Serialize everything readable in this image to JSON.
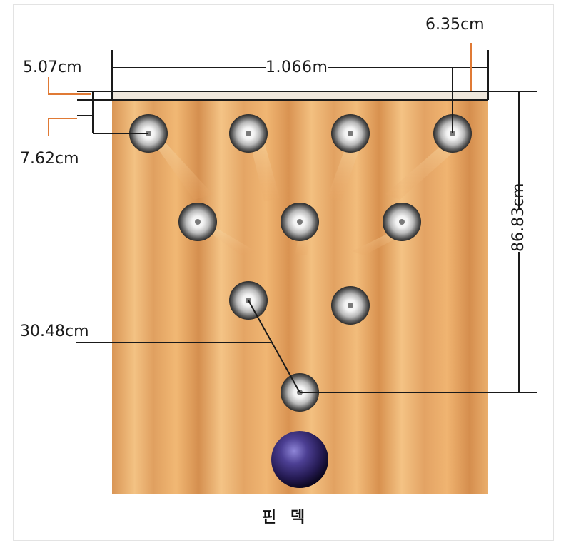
{
  "labels": {
    "pin_spacing_top": "5.07cm",
    "deck_width": "1.066m",
    "pin_diameter": "6.35cm",
    "pin_offset": "7.62cm",
    "deck_length": "86.83cm",
    "pin_distance": "30.48cm"
  },
  "caption": "핀 덱",
  "colors": {
    "wood_light": "#f0b46e",
    "wood_dark": "#c9844a",
    "pin_spot": "#9a9a9a",
    "ball": "#3a2f6e",
    "dimension_line": "#1a1a1a",
    "accent_line": "#e07a35"
  }
}
